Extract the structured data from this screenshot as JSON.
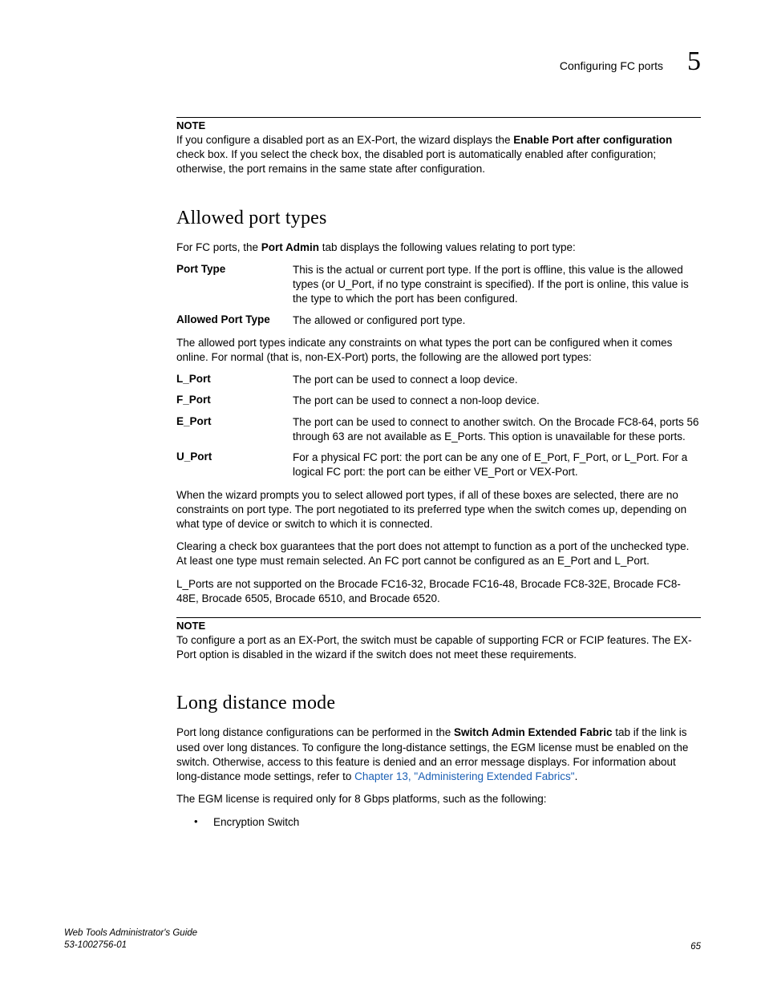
{
  "header": {
    "title": "Configuring FC ports",
    "chapter_number": "5"
  },
  "note1": {
    "label": "NOTE",
    "text_before": "If you configure a disabled port as an EX-Port, the wizard displays the ",
    "bold": "Enable Port after configuration",
    "text_after": " check box. If you select the check box, the disabled port is automatically enabled after configuration; otherwise, the port remains in the same state after configuration."
  },
  "section1": {
    "heading": "Allowed port types",
    "intro_before": "For FC ports, the ",
    "intro_bold": "Port Admin",
    "intro_after": " tab displays the following values relating to port type:",
    "defs1": [
      {
        "term": "Port Type",
        "desc": "This is the actual or current port type. If the port is offline, this value is the allowed types (or U_Port, if no type constraint is specified). If the port is online, this value is the type to which the port has been configured."
      },
      {
        "term": "Allowed Port Type",
        "desc": "The allowed or configured port type."
      }
    ],
    "para1": "The allowed port types indicate any constraints on what types the port can be configured when it comes online. For normal (that is, non-EX-Port) ports, the following are the allowed port types:",
    "defs2": [
      {
        "term": "L_Port",
        "desc": "The port can be used to connect a loop device."
      },
      {
        "term": "F_Port",
        "desc": "The port can be used to connect a non-loop device."
      },
      {
        "term": "E_Port",
        "desc": "The port can be used to connect to another switch. On the Brocade FC8-64, ports 56 through 63 are not available as E_Ports. This option is unavailable for these ports."
      },
      {
        "term": "U_Port",
        "desc": "For a physical FC port: the port can be any one of E_Port, F_Port, or L_Port. For a logical FC port: the port can be either VE_Port or VEX-Port."
      }
    ],
    "para2": "When the wizard prompts you to select allowed port types, if all of these boxes are selected, there are no constraints on port type. The port negotiated to its preferred type when the switch comes up, depending on what type of device or switch to which it is connected.",
    "para3": "Clearing a check box guarantees that the port does not attempt to function as a port of the unchecked type. At least one type must remain selected. An FC port cannot be configured as an E_Port and L_Port.",
    "para4": "L_Ports are not supported on the Brocade FC16-32, Brocade FC16-48, Brocade FC8-32E, Brocade FC8-48E, Brocade 6505, Brocade 6510, and Brocade 6520."
  },
  "note2": {
    "label": "NOTE",
    "text": "To configure a port as an EX-Port, the switch must be capable of supporting FCR or FCIP features. The EX-Port option is disabled in the wizard if the switch does not meet these requirements."
  },
  "section2": {
    "heading": "Long distance mode",
    "para1_before": "Port long distance configurations can be performed in the ",
    "para1_bold": "Switch Admin Extended Fabric",
    "para1_mid": " tab if the link is used over long distances. To configure the long-distance settings, the EGM license must be enabled on the switch. Otherwise, access to this feature is denied and an error message displays. For information about long-distance mode settings, refer to ",
    "para1_link": "Chapter 13, \"Administering Extended Fabrics\"",
    "para1_after": ".",
    "para2": "The EGM license is required only for 8 Gbps platforms, such as the following:",
    "bullets": [
      "Encryption Switch"
    ]
  },
  "footer": {
    "guide": "Web Tools Administrator's Guide",
    "docnum": "53-1002756-01",
    "page": "65"
  }
}
